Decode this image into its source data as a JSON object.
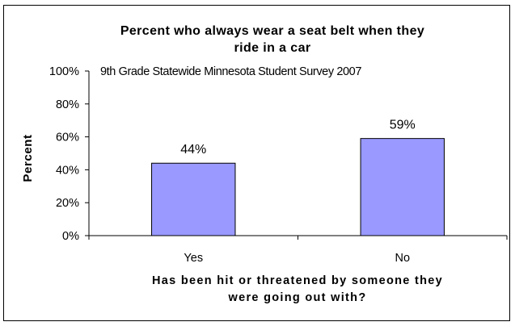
{
  "chart_data": {
    "type": "bar",
    "title_lines": [
      "Percent who always wear a seat belt when they",
      "ride in a car"
    ],
    "subtitle": "9th Grade Statewide Minnesota Student Survey 2007",
    "categories": [
      "Yes",
      "No"
    ],
    "values": [
      44,
      59
    ],
    "data_labels": [
      "44%",
      "59%"
    ],
    "ylabel": "Percent",
    "xlabel_lines": [
      "Has been hit or threatened by someone they",
      "were going out with?"
    ],
    "ylim": [
      0,
      100
    ],
    "yticks": [
      "0%",
      "20%",
      "40%",
      "60%",
      "80%",
      "100%"
    ],
    "grid": false,
    "legend": "none",
    "bar_color": "#9999ff",
    "bar_border_color": "#000000"
  }
}
